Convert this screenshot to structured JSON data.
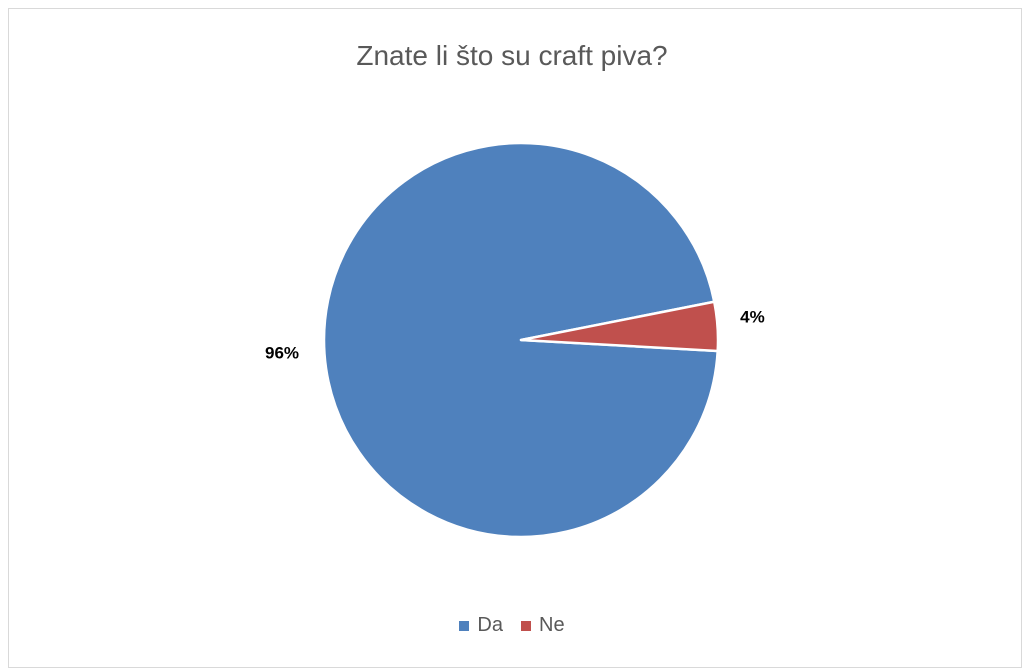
{
  "chart_data": {
    "type": "pie",
    "title": "Znate li što su craft piva?",
    "slices": [
      {
        "label": "Da",
        "value": 96,
        "value_label": "96%",
        "color": "#4f81bd"
      },
      {
        "label": "Ne",
        "value": 4,
        "value_label": "4%",
        "color": "#c0504d"
      }
    ],
    "legend_position": "bottom",
    "data_labels_bold": true
  }
}
